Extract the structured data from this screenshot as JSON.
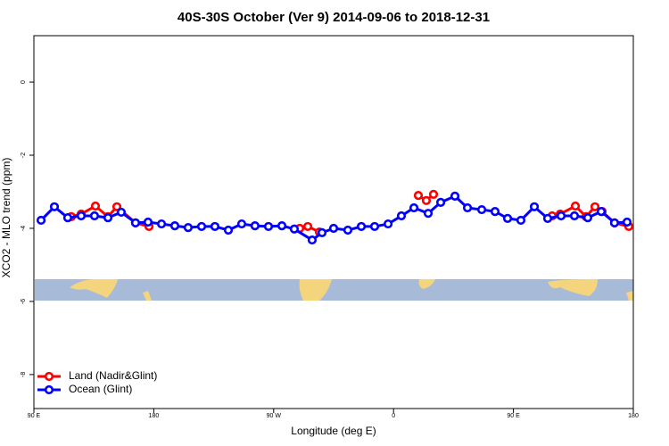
{
  "chart_data": {
    "type": "line",
    "title": "40S-30S October (Ver 9)   2014-09-06 to 2018-12-31",
    "x_label": "Longitude (deg E)",
    "y_label": "XCO2 - MLO trend (ppm)",
    "xlim": [
      90,
      540
    ],
    "ylim": [
      -8.93,
      1.27
    ],
    "xticks": [
      {
        "value": 90,
        "label": "90 E"
      },
      180,
      {
        "value": 270,
        "label": "90 W"
      },
      {
        "value": 360,
        "label": "0"
      },
      {
        "value": 450,
        "label": "90 E"
      },
      {
        "value": 540,
        "label": "180"
      }
    ],
    "yticks": [
      0,
      -2,
      -4,
      -6,
      -8
    ],
    "legend": "bottom-left",
    "series": [
      {
        "name": "Land (Nadir&Glint)",
        "color": "#ff0000",
        "x": [
          118.1,
          125.5,
          136.2,
          145.6,
          152.3,
          166.3,
          176.4,
          null,
          289.6,
          295.6,
          304.3,
          null,
          378.6,
          384.6,
          390.0,
          null,
          479.1,
          485.1,
          496.5,
          504.5,
          511.2,
          516.6,
          525.9,
          536.6
        ],
        "values": [
          -3.68,
          -3.61,
          -3.39,
          -3.68,
          -3.41,
          -3.85,
          -3.95,
          null,
          -4.0,
          -3.95,
          -4.1,
          null,
          -3.1,
          -3.24,
          -3.07,
          null,
          -3.66,
          -3.61,
          -3.39,
          -3.68,
          -3.41,
          -3.54,
          -3.85,
          -3.95
        ]
      },
      {
        "name": "Ocean (Glint)",
        "color": "#0000ff",
        "x": [
          95.4,
          105.4,
          115.4,
          125.5,
          135.5,
          145.6,
          155.6,
          166.3,
          175.7,
          185.8,
          195.8,
          205.8,
          215.9,
          225.9,
          236.0,
          246.0,
          256.0,
          266.1,
          276.2,
          285.5,
          298.9,
          306.3,
          315.0,
          325.7,
          335.8,
          345.8,
          355.9,
          365.9,
          375.3,
          386.0,
          395.4,
          406.1,
          415.5,
          426.2,
          436.2,
          445.6,
          455.6,
          465.7,
          475.7,
          485.8,
          495.8,
          505.8,
          515.9,
          525.9,
          535.3
        ],
        "values": [
          -3.78,
          -3.41,
          -3.71,
          -3.66,
          -3.66,
          -3.71,
          -3.56,
          -3.85,
          -3.83,
          -3.88,
          -3.93,
          -3.98,
          -3.95,
          -3.95,
          -4.05,
          -3.88,
          -3.93,
          -3.95,
          -3.93,
          -4.02,
          -4.32,
          -4.12,
          -4.0,
          -4.05,
          -3.95,
          -3.95,
          -3.88,
          -3.66,
          -3.44,
          -3.59,
          -3.29,
          -3.12,
          -3.44,
          -3.49,
          -3.54,
          -3.73,
          -3.78,
          -3.41,
          -3.73,
          -3.66,
          -3.66,
          -3.71,
          -3.54,
          -3.85,
          -3.83
        ]
      }
    ]
  }
}
